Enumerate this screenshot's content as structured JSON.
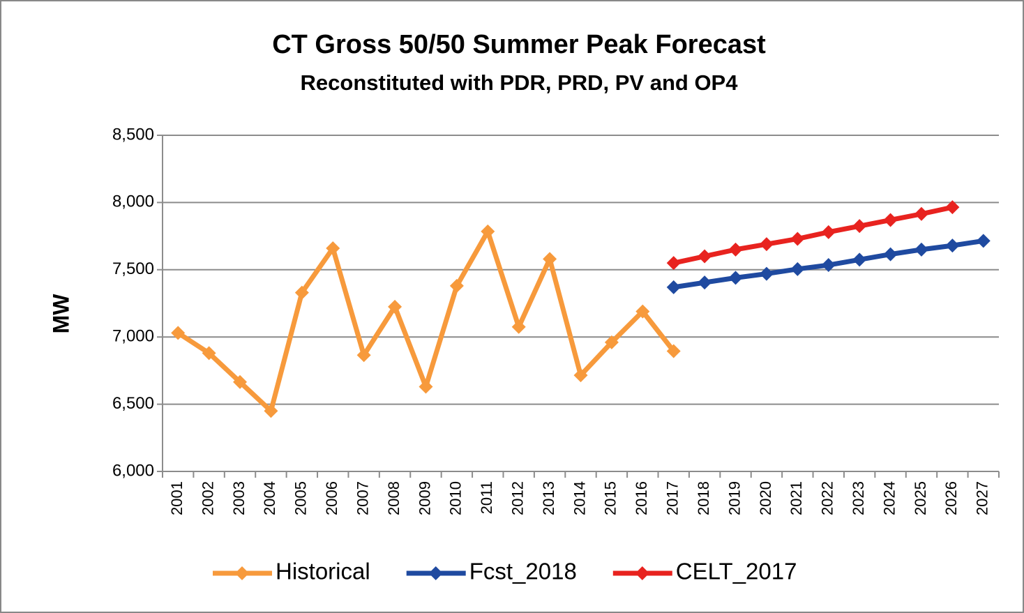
{
  "chart_data": {
    "type": "line",
    "title": "CT Gross 50/50 Summer Peak Forecast",
    "subtitle": "Reconstituted with PDR, PRD, PV and OP4",
    "y_label": "MW",
    "categories": [
      "2001",
      "2002",
      "2003",
      "2004",
      "2005",
      "2006",
      "2007",
      "2008",
      "2009",
      "2010",
      "2011",
      "2012",
      "2013",
      "2014",
      "2015",
      "2016",
      "2017",
      "2018",
      "2019",
      "2020",
      "2021",
      "2022",
      "2023",
      "2024",
      "2025",
      "2026",
      "2027"
    ],
    "series": [
      {
        "name": "Historical",
        "color": "#f79a3c",
        "values": [
          7030,
          6880,
          6665,
          6450,
          7330,
          7660,
          6865,
          7225,
          6630,
          7380,
          7785,
          7075,
          7580,
          6715,
          6960,
          7190,
          6895,
          null,
          null,
          null,
          null,
          null,
          null,
          null,
          null,
          null,
          null
        ]
      },
      {
        "name": "Fcst_2018",
        "color": "#1f4aa0",
        "values": [
          null,
          null,
          null,
          null,
          null,
          null,
          null,
          null,
          null,
          null,
          null,
          null,
          null,
          null,
          null,
          null,
          7370,
          7405,
          7440,
          7470,
          7505,
          7535,
          7575,
          7615,
          7650,
          7680,
          7715
        ]
      },
      {
        "name": "CELT_2017",
        "color": "#e8231f",
        "values": [
          null,
          null,
          null,
          null,
          null,
          null,
          null,
          null,
          null,
          null,
          null,
          null,
          null,
          null,
          null,
          null,
          7550,
          7600,
          7650,
          7690,
          7730,
          7780,
          7825,
          7870,
          7915,
          7965,
          null
        ]
      }
    ],
    "ylim": [
      6000,
      8500
    ],
    "yticks": [
      {
        "value": 6000,
        "label": "6,000"
      },
      {
        "value": 6500,
        "label": "6,500"
      },
      {
        "value": 7000,
        "label": "7,000"
      },
      {
        "value": 7500,
        "label": "7,500"
      },
      {
        "value": 8000,
        "label": "8,000"
      },
      {
        "value": 8500,
        "label": "8,500"
      }
    ],
    "grid": true,
    "legend": "bottom"
  }
}
